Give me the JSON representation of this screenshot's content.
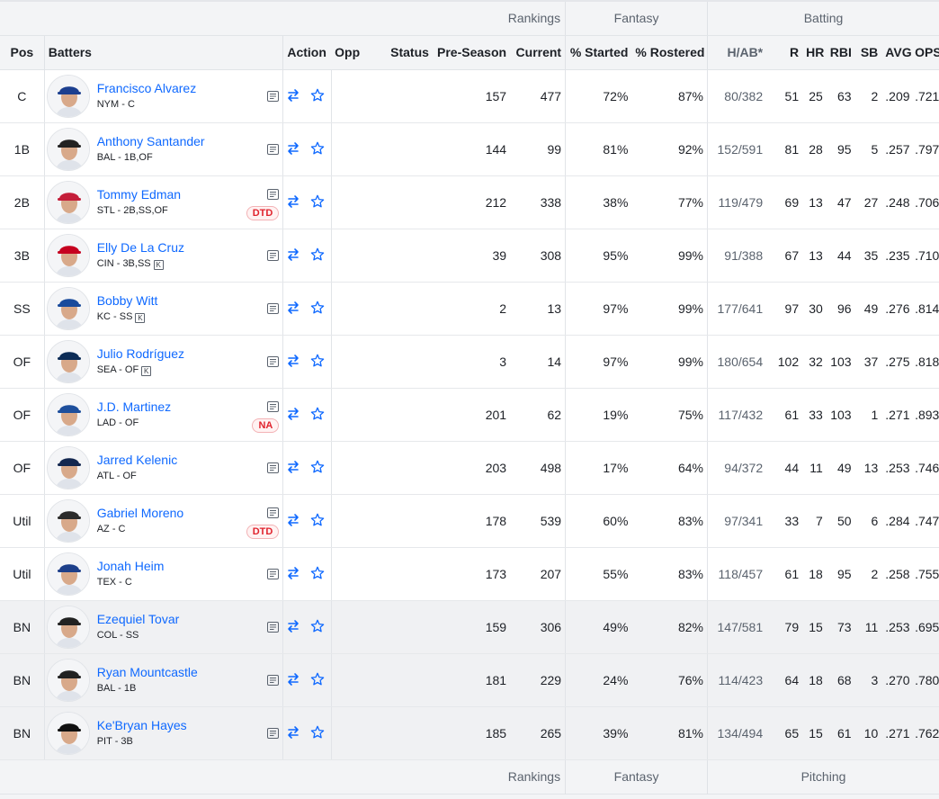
{
  "groups": {
    "rankings": "Rankings",
    "fantasy": "Fantasy",
    "batting": "Batting",
    "pitching": "Pitching"
  },
  "headers": {
    "pos": "Pos",
    "batters": "Batters",
    "action": "Action",
    "opp": "Opp",
    "status": "Status",
    "preseason": "Pre-Season",
    "current": "Current",
    "started": "% Started",
    "rostered": "% Rostered",
    "hab": "H/AB*",
    "r": "R",
    "hr": "HR",
    "rbi": "RBI",
    "sb": "SB",
    "avg": "AVG",
    "ops": "OPS"
  },
  "colors": {
    "link": "#0f69ff",
    "status_red": "#e0232d",
    "bench_bg": "#f0f1f3",
    "header_bg": "#f3f4f6"
  },
  "players": [
    {
      "pos": "C",
      "name": "Francisco Alvarez",
      "team": "NYM - C",
      "k": false,
      "status": "",
      "pre": "157",
      "cur": "477",
      "started": "72%",
      "rostered": "87%",
      "hab": "80/382",
      "r": "51",
      "hr": "25",
      "rbi": "63",
      "sb": "2",
      "avg": ".209",
      "ops": ".721",
      "bench": false,
      "cap": "#1c3f8f"
    },
    {
      "pos": "1B",
      "name": "Anthony Santander",
      "team": "BAL - 1B,OF",
      "k": false,
      "status": "",
      "pre": "144",
      "cur": "99",
      "started": "81%",
      "rostered": "92%",
      "hab": "152/591",
      "r": "81",
      "hr": "28",
      "rbi": "95",
      "sb": "5",
      "avg": ".257",
      "ops": ".797",
      "bench": false,
      "cap": "#222222"
    },
    {
      "pos": "2B",
      "name": "Tommy Edman",
      "team": "STL - 2B,SS,OF",
      "k": false,
      "status": "DTD",
      "pre": "212",
      "cur": "338",
      "started": "38%",
      "rostered": "77%",
      "hab": "119/479",
      "r": "69",
      "hr": "13",
      "rbi": "47",
      "sb": "27",
      "avg": ".248",
      "ops": ".706",
      "bench": false,
      "cap": "#c41e3a"
    },
    {
      "pos": "3B",
      "name": "Elly De La Cruz",
      "team": "CIN - 3B,SS",
      "k": true,
      "status": "",
      "pre": "39",
      "cur": "308",
      "started": "95%",
      "rostered": "99%",
      "hab": "91/388",
      "r": "67",
      "hr": "13",
      "rbi": "44",
      "sb": "35",
      "avg": ".235",
      "ops": ".710",
      "bench": false,
      "cap": "#c6011f"
    },
    {
      "pos": "SS",
      "name": "Bobby Witt",
      "team": "KC - SS",
      "k": true,
      "status": "",
      "pre": "2",
      "cur": "13",
      "started": "97%",
      "rostered": "99%",
      "hab": "177/641",
      "r": "97",
      "hr": "30",
      "rbi": "96",
      "sb": "49",
      "avg": ".276",
      "ops": ".814",
      "bench": false,
      "cap": "#1a4b9c"
    },
    {
      "pos": "OF",
      "name": "Julio Rodríguez",
      "team": "SEA - OF",
      "k": true,
      "status": "",
      "pre": "3",
      "cur": "14",
      "started": "97%",
      "rostered": "99%",
      "hab": "180/654",
      "r": "102",
      "hr": "32",
      "rbi": "103",
      "sb": "37",
      "avg": ".275",
      "ops": ".818",
      "bench": false,
      "cap": "#0c2c56"
    },
    {
      "pos": "OF",
      "name": "J.D. Martinez",
      "team": "LAD - OF",
      "k": false,
      "status": "NA",
      "pre": "201",
      "cur": "62",
      "started": "19%",
      "rostered": "75%",
      "hab": "117/432",
      "r": "61",
      "hr": "33",
      "rbi": "103",
      "sb": "1",
      "avg": ".271",
      "ops": ".893",
      "bench": false,
      "cap": "#1e4f9c"
    },
    {
      "pos": "OF",
      "name": "Jarred Kelenic",
      "team": "ATL - OF",
      "k": false,
      "status": "",
      "pre": "203",
      "cur": "498",
      "started": "17%",
      "rostered": "64%",
      "hab": "94/372",
      "r": "44",
      "hr": "11",
      "rbi": "49",
      "sb": "13",
      "avg": ".253",
      "ops": ".746",
      "bench": false,
      "cap": "#13274f"
    },
    {
      "pos": "Util",
      "name": "Gabriel Moreno",
      "team": "AZ - C",
      "k": false,
      "status": "DTD",
      "pre": "178",
      "cur": "539",
      "started": "60%",
      "rostered": "83%",
      "hab": "97/341",
      "r": "33",
      "hr": "7",
      "rbi": "50",
      "sb": "6",
      "avg": ".284",
      "ops": ".747",
      "bench": false,
      "cap": "#2b2b2b"
    },
    {
      "pos": "Util",
      "name": "Jonah Heim",
      "team": "TEX - C",
      "k": false,
      "status": "",
      "pre": "173",
      "cur": "207",
      "started": "55%",
      "rostered": "83%",
      "hab": "118/457",
      "r": "61",
      "hr": "18",
      "rbi": "95",
      "sb": "2",
      "avg": ".258",
      "ops": ".755",
      "bench": false,
      "cap": "#1d3f8a"
    },
    {
      "pos": "BN",
      "name": "Ezequiel Tovar",
      "team": "COL - SS",
      "k": false,
      "status": "",
      "pre": "159",
      "cur": "306",
      "started": "49%",
      "rostered": "82%",
      "hab": "147/581",
      "r": "79",
      "hr": "15",
      "rbi": "73",
      "sb": "11",
      "avg": ".253",
      "ops": ".695",
      "bench": true,
      "cap": "#222222"
    },
    {
      "pos": "BN",
      "name": "Ryan Mountcastle",
      "team": "BAL - 1B",
      "k": false,
      "status": "",
      "pre": "181",
      "cur": "229",
      "started": "24%",
      "rostered": "76%",
      "hab": "114/423",
      "r": "64",
      "hr": "18",
      "rbi": "68",
      "sb": "3",
      "avg": ".270",
      "ops": ".780",
      "bench": true,
      "cap": "#222222"
    },
    {
      "pos": "BN",
      "name": "Ke'Bryan Hayes",
      "team": "PIT - 3B",
      "k": false,
      "status": "",
      "pre": "185",
      "cur": "265",
      "started": "39%",
      "rostered": "81%",
      "hab": "134/494",
      "r": "65",
      "hr": "15",
      "rbi": "61",
      "sb": "10",
      "avg": ".271",
      "ops": ".762",
      "bench": true,
      "cap": "#111111"
    }
  ]
}
